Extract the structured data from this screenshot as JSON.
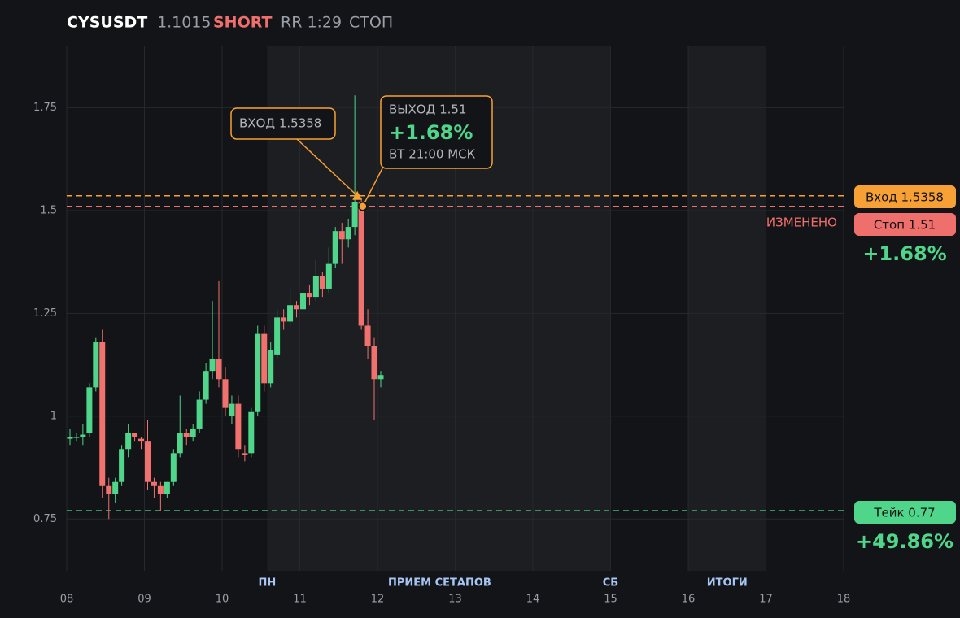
{
  "header": {
    "symbol": "CYSUSDT",
    "price": "1.1015",
    "side": "SHORT",
    "rr": "RR 1:29",
    "mode": "СТОП"
  },
  "chart_data": {
    "type": "candlestick",
    "xlim": [
      8,
      18
    ],
    "ylim": [
      0.624,
      1.901
    ],
    "xticks": [
      {
        "value": 8,
        "label": "08"
      },
      {
        "value": 9,
        "label": "09"
      },
      10,
      11,
      12,
      13,
      14,
      15,
      16,
      17,
      18
    ],
    "yticks": [
      0.75,
      1,
      1.25,
      1.5,
      1.75
    ],
    "grid": true,
    "up_color": "#4fd68b",
    "down_color": "#f0716d",
    "x": [
      8.042,
      8.125,
      8.208,
      8.292,
      8.375,
      8.458,
      8.542,
      8.625,
      8.708,
      8.792,
      8.875,
      8.958,
      9.042,
      9.125,
      9.208,
      9.292,
      9.375,
      9.458,
      9.542,
      9.625,
      9.708,
      9.792,
      9.875,
      9.958,
      10.042,
      10.125,
      10.208,
      10.292,
      10.375,
      10.458,
      10.542,
      10.625,
      10.708,
      10.792,
      10.875,
      10.958,
      11.042,
      11.125,
      11.208,
      11.292,
      11.375,
      11.458,
      11.542,
      11.625,
      11.708,
      11.792,
      11.875,
      11.958,
      12.042
    ],
    "open": [
      0.945,
      0.95,
      0.95,
      0.96,
      1.07,
      1.18,
      0.83,
      0.81,
      0.84,
      0.92,
      0.96,
      0.945,
      0.94,
      0.84,
      0.83,
      0.81,
      0.84,
      0.91,
      0.96,
      0.95,
      0.97,
      1.04,
      1.11,
      1.14,
      1.09,
      1.0,
      1.03,
      0.91,
      0.91,
      1.01,
      1.2,
      1.08,
      1.15,
      1.24,
      1.23,
      1.27,
      1.26,
      1.3,
      1.29,
      1.34,
      1.31,
      1.37,
      1.45,
      1.43,
      1.46,
      1.52,
      1.22,
      1.17,
      1.09
    ],
    "high": [
      0.97,
      0.96,
      0.98,
      1.08,
      1.19,
      1.21,
      0.85,
      0.85,
      0.93,
      0.98,
      0.96,
      0.95,
      0.99,
      0.85,
      0.84,
      0.84,
      0.92,
      1.05,
      0.97,
      0.98,
      1.06,
      1.13,
      1.28,
      1.33,
      1.12,
      1.05,
      1.05,
      0.93,
      1.02,
      1.22,
      1.22,
      1.18,
      1.26,
      1.26,
      1.31,
      1.28,
      1.34,
      1.32,
      1.38,
      1.35,
      1.41,
      1.46,
      1.47,
      1.48,
      1.78,
      1.53,
      1.26,
      1.19,
      1.11
    ],
    "low": [
      0.93,
      0.94,
      0.93,
      0.95,
      1.06,
      0.8,
      0.75,
      0.79,
      0.83,
      0.9,
      0.94,
      0.92,
      0.82,
      0.8,
      0.77,
      0.8,
      0.83,
      0.9,
      0.93,
      0.94,
      0.96,
      1.03,
      1.09,
      1.07,
      1.0,
      0.98,
      0.9,
      0.89,
      0.9,
      1.0,
      1.06,
      1.07,
      1.14,
      1.21,
      1.22,
      1.24,
      1.25,
      1.27,
      1.28,
      1.29,
      1.3,
      1.36,
      1.37,
      1.41,
      1.44,
      1.21,
      1.14,
      0.99,
      1.07
    ],
    "close": [
      0.95,
      0.95,
      0.955,
      1.07,
      1.18,
      0.83,
      0.81,
      0.84,
      0.92,
      0.96,
      0.95,
      0.94,
      0.84,
      0.83,
      0.81,
      0.84,
      0.91,
      0.96,
      0.95,
      0.97,
      1.04,
      1.11,
      1.14,
      1.09,
      1.02,
      1.03,
      0.92,
      0.905,
      1.01,
      1.2,
      1.08,
      1.16,
      1.24,
      1.23,
      1.27,
      1.26,
      1.3,
      1.29,
      1.34,
      1.31,
      1.37,
      1.45,
      1.43,
      1.46,
      1.52,
      1.22,
      1.17,
      1.09,
      1.1
    ],
    "bands": [
      {
        "from": 10.58,
        "to": 15.0
      },
      {
        "from": 16.0,
        "to": 17.0
      }
    ],
    "session_labels": [
      {
        "x": 10.58,
        "label": "ПН"
      },
      {
        "x": 12.8,
        "label": "ПРИЕМ СЕТАПОВ"
      },
      {
        "x": 15.0,
        "label": "СБ"
      },
      {
        "x": 16.5,
        "label": "ИТОГИ"
      }
    ],
    "levels": [
      {
        "name": "Вход 1.5358",
        "value": 1.5358,
        "color": "#f7a035"
      },
      {
        "name": "Стоп 1.51",
        "value": 1.51,
        "color": "#ef6f6c"
      },
      {
        "name": "Тейк 0.77",
        "value": 0.77,
        "color": "#4fd68b"
      }
    ],
    "stop_note": "ИЗМЕНЕНО",
    "stop_result": "+1.68%",
    "take_result": "+49.86%",
    "annotations": [
      {
        "lines": [
          "ВХОД 1.5358"
        ],
        "x": 11.74,
        "y": 1.5358
      },
      {
        "lines": [
          "ВЫХОД 1.51",
          "+1.68%",
          "ВТ 21:00 МСК"
        ],
        "x": 11.81,
        "y": 1.51
      }
    ]
  }
}
